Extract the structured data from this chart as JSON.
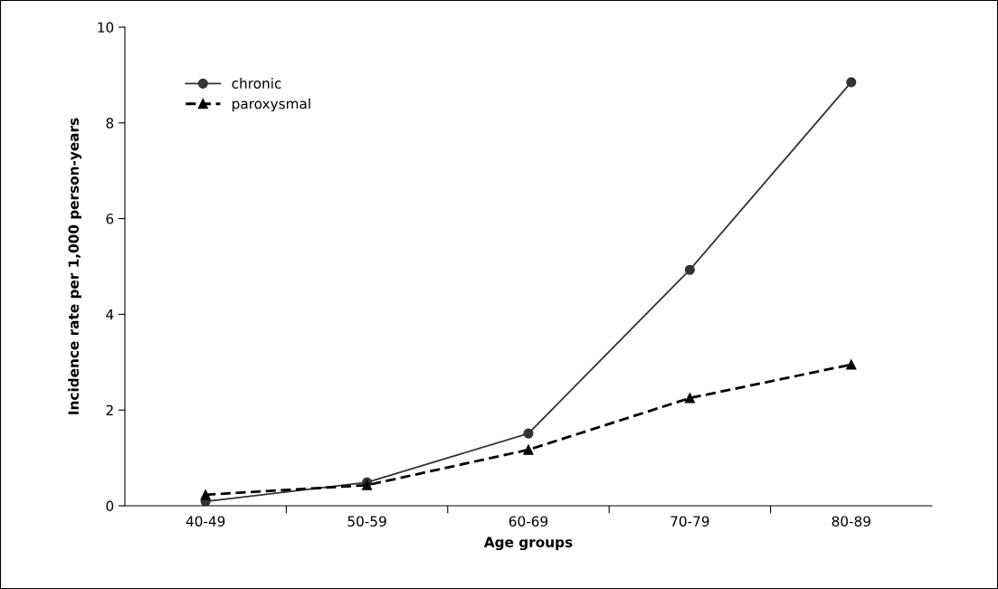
{
  "chart_data": {
    "type": "line",
    "xlabel": "Age groups",
    "ylabel": "Incidence rate per 1,000 person-years",
    "categories": [
      "40-49",
      "50-59",
      "60-69",
      "70-79",
      "80-89"
    ],
    "series": [
      {
        "name": "chronic",
        "color": "#333333",
        "marker": "circle",
        "line_style": "solid",
        "values": [
          0.09,
          0.49,
          1.51,
          4.93,
          8.85
        ]
      },
      {
        "name": "paroxysmal",
        "color": "#000000",
        "marker": "triangle",
        "line_style": "dashed",
        "values": [
          0.23,
          0.43,
          1.17,
          2.25,
          2.95
        ]
      }
    ],
    "ylim": [
      0,
      10
    ],
    "yticks": [
      0,
      2,
      4,
      6,
      8,
      10
    ],
    "grid": false,
    "legend": "top left"
  }
}
